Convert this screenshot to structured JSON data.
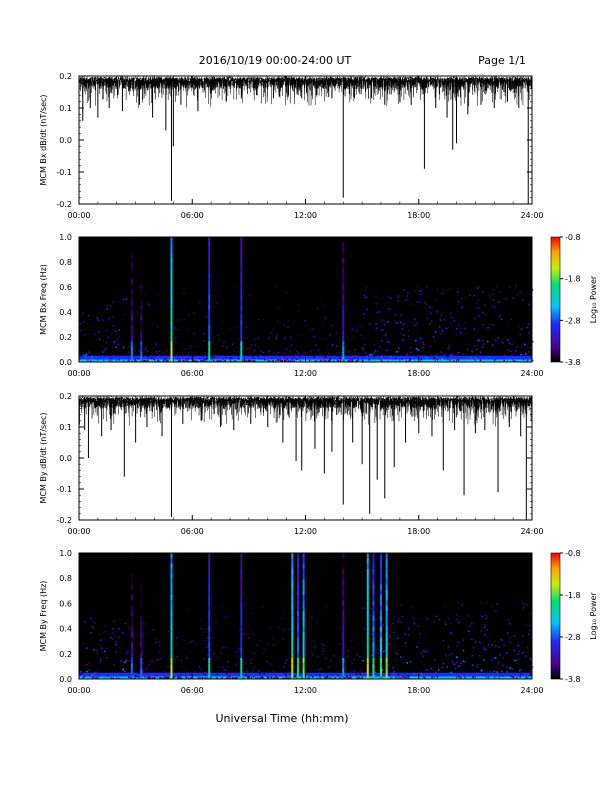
{
  "header": {
    "date_range": "2016/10/19   00:00-24:00 UT",
    "page_label": "Page 1/1"
  },
  "footer": {
    "xlabel": "Universal Time (hh:mm)"
  },
  "colorbar": {
    "label": "Log₁₀ Power",
    "ticks": [
      "-0.8",
      "-1.8",
      "-2.8",
      "-3.8"
    ],
    "range": [
      -3.8,
      -0.8
    ]
  },
  "chart_data": [
    {
      "id": "bx_dbdt",
      "type": "line",
      "ylabel": "MCM Bx dB/dt (nT/sec)",
      "xlim": [
        0,
        24
      ],
      "ylim": [
        -0.2,
        0.2
      ],
      "xticks": [
        "00:00",
        "06:00",
        "12:00",
        "18:00",
        "24:00"
      ],
      "yticks": [
        "0.2",
        "0.1",
        "0.0",
        "-0.1",
        "-0.2"
      ],
      "baseline": 0.19,
      "envelope_low": 0.1,
      "spikes": [
        {
          "t": 0.2,
          "v": 0.06
        },
        {
          "t": 0.6,
          "v": 0.1
        },
        {
          "t": 1.0,
          "v": 0.07
        },
        {
          "t": 1.6,
          "v": 0.1
        },
        {
          "t": 2.3,
          "v": 0.09
        },
        {
          "t": 3.2,
          "v": 0.11
        },
        {
          "t": 3.9,
          "v": 0.07
        },
        {
          "t": 4.6,
          "v": 0.03
        },
        {
          "t": 4.9,
          "v": -0.19
        },
        {
          "t": 5.0,
          "v": -0.02
        },
        {
          "t": 5.4,
          "v": 0.11
        },
        {
          "t": 6.3,
          "v": 0.09
        },
        {
          "t": 7.0,
          "v": 0.13
        },
        {
          "t": 7.8,
          "v": 0.12
        },
        {
          "t": 8.6,
          "v": 0.13
        },
        {
          "t": 9.4,
          "v": 0.14
        },
        {
          "t": 10.3,
          "v": 0.13
        },
        {
          "t": 11.1,
          "v": 0.14
        },
        {
          "t": 11.8,
          "v": 0.13
        },
        {
          "t": 12.6,
          "v": 0.14
        },
        {
          "t": 13.4,
          "v": 0.13
        },
        {
          "t": 14.0,
          "v": -0.18
        },
        {
          "t": 14.6,
          "v": 0.13
        },
        {
          "t": 15.5,
          "v": 0.13
        },
        {
          "t": 16.2,
          "v": 0.11
        },
        {
          "t": 17.0,
          "v": 0.12
        },
        {
          "t": 17.6,
          "v": 0.11
        },
        {
          "t": 18.3,
          "v": -0.09
        },
        {
          "t": 18.9,
          "v": 0.1
        },
        {
          "t": 19.5,
          "v": 0.07
        },
        {
          "t": 19.8,
          "v": -0.03
        },
        {
          "t": 20.0,
          "v": -0.01
        },
        {
          "t": 20.6,
          "v": 0.08
        },
        {
          "t": 21.3,
          "v": 0.11
        },
        {
          "t": 22.0,
          "v": 0.1
        },
        {
          "t": 22.7,
          "v": 0.12
        },
        {
          "t": 23.3,
          "v": 0.1
        },
        {
          "t": 23.8,
          "v": -0.2
        }
      ]
    },
    {
      "id": "bx_freq",
      "type": "heatmap",
      "ylabel": "MCM Bx Freq (Hz)",
      "xlim": [
        0,
        24
      ],
      "ylim": [
        0,
        1
      ],
      "xticks": [
        "00:00",
        "06:00",
        "12:00",
        "18:00",
        "24:00"
      ],
      "yticks": [
        "1.0",
        "0.8",
        "0.6",
        "0.4",
        "0.2",
        "0.0"
      ],
      "vertical_bands": [
        {
          "t": 2.8,
          "power": -3.3
        },
        {
          "t": 3.3,
          "power": -3.4
        },
        {
          "t": 4.9,
          "power": -2.0
        },
        {
          "t": 6.9,
          "power": -2.6
        },
        {
          "t": 8.6,
          "power": -2.8
        },
        {
          "t": 14.0,
          "power": -3.1
        }
      ],
      "activity_regions": [
        {
          "t0": 0.0,
          "t1": 2.5,
          "fmax": 0.3
        },
        {
          "t0": 15.0,
          "t1": 24.0,
          "fmax": 0.4
        }
      ]
    },
    {
      "id": "by_dbdt",
      "type": "line",
      "ylabel": "MCM By dB/dt (nT/sec)",
      "xlim": [
        0,
        24
      ],
      "ylim": [
        -0.2,
        0.2
      ],
      "xticks": [
        "00:00",
        "06:00",
        "12:00",
        "18:00",
        "24:00"
      ],
      "yticks": [
        "0.2",
        "0.1",
        "0.0",
        "-0.1",
        "-0.2"
      ],
      "baseline": 0.19,
      "envelope_low": 0.1,
      "spikes": [
        {
          "t": 0.3,
          "v": 0.09
        },
        {
          "t": 0.5,
          "v": 0.0
        },
        {
          "t": 1.2,
          "v": 0.07
        },
        {
          "t": 1.7,
          "v": 0.09
        },
        {
          "t": 2.4,
          "v": -0.06
        },
        {
          "t": 3.0,
          "v": 0.05
        },
        {
          "t": 3.6,
          "v": 0.1
        },
        {
          "t": 4.4,
          "v": 0.07
        },
        {
          "t": 4.9,
          "v": -0.19
        },
        {
          "t": 5.5,
          "v": 0.11
        },
        {
          "t": 6.5,
          "v": 0.12
        },
        {
          "t": 7.5,
          "v": 0.1
        },
        {
          "t": 8.2,
          "v": 0.09
        },
        {
          "t": 9.1,
          "v": 0.11
        },
        {
          "t": 10.0,
          "v": 0.1
        },
        {
          "t": 10.8,
          "v": 0.05
        },
        {
          "t": 11.5,
          "v": -0.01
        },
        {
          "t": 11.8,
          "v": -0.04
        },
        {
          "t": 12.5,
          "v": 0.03
        },
        {
          "t": 13.0,
          "v": -0.05
        },
        {
          "t": 13.4,
          "v": 0.02
        },
        {
          "t": 14.0,
          "v": -0.15
        },
        {
          "t": 14.5,
          "v": 0.05
        },
        {
          "t": 15.0,
          "v": -0.02
        },
        {
          "t": 15.4,
          "v": -0.18
        },
        {
          "t": 15.8,
          "v": -0.07
        },
        {
          "t": 16.2,
          "v": -0.13
        },
        {
          "t": 16.7,
          "v": -0.03
        },
        {
          "t": 17.3,
          "v": 0.05
        },
        {
          "t": 18.0,
          "v": 0.08
        },
        {
          "t": 18.7,
          "v": 0.07
        },
        {
          "t": 19.3,
          "v": -0.04
        },
        {
          "t": 19.9,
          "v": 0.09
        },
        {
          "t": 20.4,
          "v": -0.12
        },
        {
          "t": 21.0,
          "v": 0.08
        },
        {
          "t": 21.5,
          "v": 0.09
        },
        {
          "t": 22.2,
          "v": -0.11
        },
        {
          "t": 22.8,
          "v": 0.1
        },
        {
          "t": 23.4,
          "v": 0.07
        },
        {
          "t": 23.7,
          "v": -0.2
        }
      ]
    },
    {
      "id": "by_freq",
      "type": "heatmap",
      "ylabel": "MCM By Freq (Hz)",
      "xlim": [
        0,
        24
      ],
      "ylim": [
        0,
        1
      ],
      "xticks": [
        "00:00",
        "06:00",
        "12:00",
        "18:00",
        "24:00"
      ],
      "yticks": [
        "1.0",
        "0.8",
        "0.6",
        "0.4",
        "0.2",
        "0.0"
      ],
      "vertical_bands": [
        {
          "t": 2.8,
          "power": -3.3
        },
        {
          "t": 3.3,
          "power": -3.4
        },
        {
          "t": 4.9,
          "power": -2.1
        },
        {
          "t": 6.9,
          "power": -2.7
        },
        {
          "t": 8.6,
          "power": -2.8
        },
        {
          "t": 11.3,
          "power": -2.1
        },
        {
          "t": 11.6,
          "power": -2.6
        },
        {
          "t": 11.9,
          "power": -2.3
        },
        {
          "t": 14.0,
          "power": -3.1
        },
        {
          "t": 15.3,
          "power": -2.0
        },
        {
          "t": 15.6,
          "power": -2.5
        },
        {
          "t": 16.0,
          "power": -2.4
        },
        {
          "t": 16.3,
          "power": -2.2
        }
      ],
      "activity_regions": [
        {
          "t0": 0.0,
          "t1": 2.5,
          "fmax": 0.3
        },
        {
          "t0": 15.0,
          "t1": 24.0,
          "fmax": 0.4
        }
      ]
    }
  ]
}
